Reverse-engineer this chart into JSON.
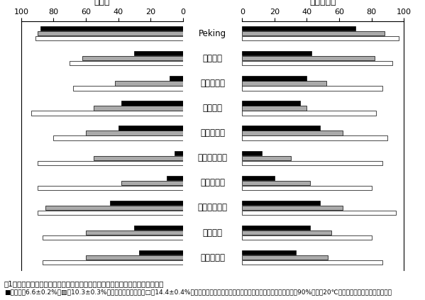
{
  "varieties": [
    "Peking",
    "エンレイ",
    "タチナガハ",
    "ホウレイ",
    "ハタユタカ",
    "ナカセンナリ",
    "タマホマレ",
    "ミスズダイズ",
    "ヒュウガ",
    "全品種平均"
  ],
  "germination_black": [
    88,
    30,
    8,
    38,
    40,
    5,
    10,
    45,
    30,
    27
  ],
  "germination_gray": [
    90,
    62,
    42,
    55,
    60,
    55,
    38,
    85,
    60,
    60
  ],
  "germination_white": [
    91,
    70,
    68,
    94,
    80,
    90,
    90,
    90,
    87,
    87
  ],
  "growth_black": [
    70,
    43,
    40,
    36,
    48,
    12,
    20,
    48,
    42,
    33
  ],
  "growth_gray": [
    88,
    82,
    52,
    40,
    62,
    30,
    42,
    62,
    55,
    53
  ],
  "growth_white": [
    97,
    93,
    87,
    83,
    90,
    87,
    80,
    95,
    80,
    87
  ],
  "left_title": "出芽率",
  "right_title": "初期生育量",
  "caption_line1": "囱1　ダイズ種子の冒水処理が出芽率、出芽後の植物体の初期生育に与える影響",
  "caption_line2": "■：含水瑶6.6±0.2%、▨：10.3±0.3%（含水率調節無し）、□：14.4±0.4%。含水率は種子新鮮重あたりの含水率。含水率の調節は，湿度90%、温度20℃に設定した恆温機中で行った。",
  "bar_colors": [
    "#000000",
    "#aaaaaa",
    "#ffffff"
  ],
  "bar_height": 0.2
}
